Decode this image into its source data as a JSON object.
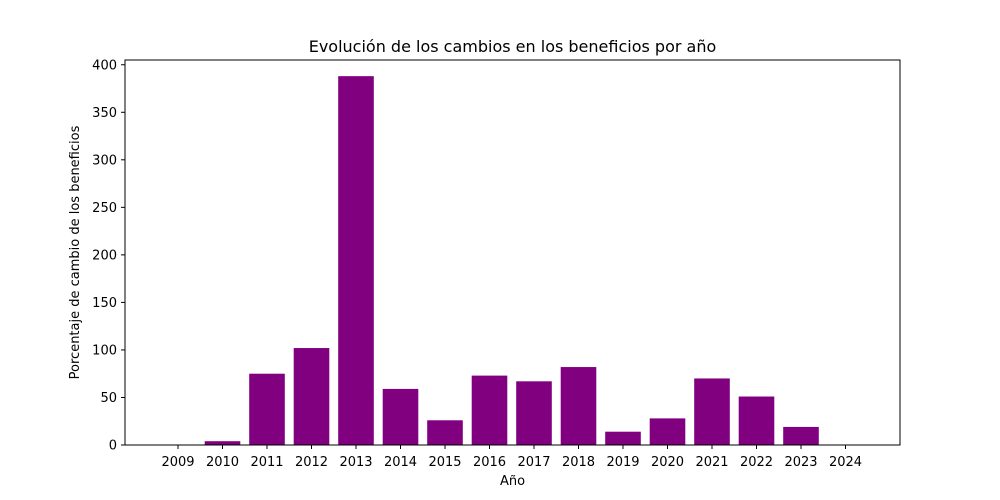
{
  "chart_data": {
    "type": "bar",
    "title": "Evolución de los cambios en los beneficios por año",
    "xlabel": "Año",
    "ylabel": "Porcentaje de cambio de los beneficios",
    "categories": [
      "2009",
      "2010",
      "2011",
      "2012",
      "2013",
      "2014",
      "2015",
      "2016",
      "2017",
      "2018",
      "2019",
      "2020",
      "2021",
      "2022",
      "2023",
      "2024"
    ],
    "values": [
      0,
      4,
      75,
      102,
      388,
      59,
      26,
      73,
      67,
      82,
      14,
      28,
      70,
      51,
      19,
      0
    ],
    "ylim": [
      0,
      405
    ],
    "yticks": [
      0,
      50,
      100,
      150,
      200,
      250,
      300,
      350,
      400
    ],
    "bar_color": "#800080",
    "grid": false,
    "legend": "none"
  }
}
